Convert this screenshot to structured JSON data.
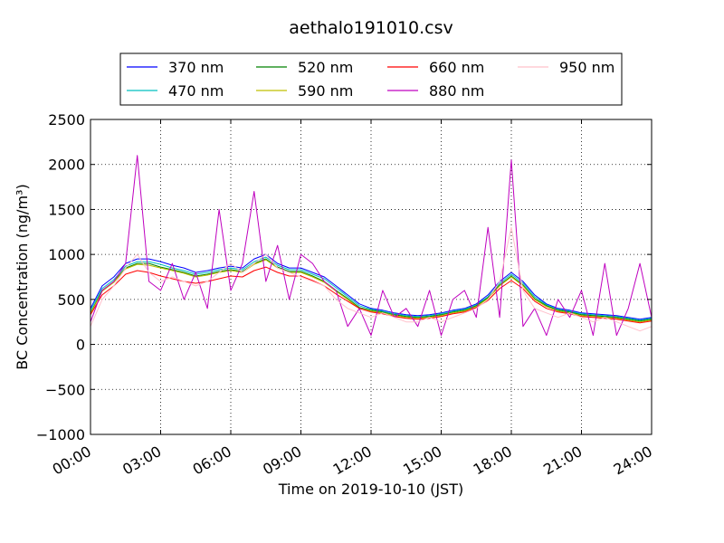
{
  "chart_data": {
    "type": "line",
    "title": "aethalo191010.csv",
    "xlabel": "Time on 2019-10-10 (JST)",
    "ylabel": "BC Concentration (ng/m³)",
    "xlim": [
      "00:00",
      "24:00"
    ],
    "ylim": [
      -1000,
      2500
    ],
    "grid": true,
    "legend_position": "top",
    "x_ticks": [
      "00:00",
      "03:00",
      "06:00",
      "09:00",
      "12:00",
      "15:00",
      "18:00",
      "21:00",
      "24:00"
    ],
    "y_ticks": [
      -1000,
      -500,
      0,
      500,
      1000,
      1500,
      2000,
      2500
    ],
    "y_tick_labels": [
      "−1000",
      "−500",
      "0",
      "500",
      "1000",
      "1500",
      "2000",
      "2500"
    ],
    "x_hours": [
      0,
      0.5,
      1,
      1.5,
      2,
      2.5,
      3,
      3.5,
      4,
      4.5,
      5,
      5.5,
      6,
      6.5,
      7,
      7.5,
      8,
      8.5,
      9,
      9.5,
      10,
      10.5,
      11,
      11.5,
      12,
      12.5,
      13,
      13.5,
      14,
      14.5,
      15,
      15.5,
      16,
      16.5,
      17,
      17.5,
      18,
      18.5,
      19,
      19.5,
      20,
      20.5,
      21,
      21.5,
      22,
      22.5,
      23,
      23.5,
      24
    ],
    "series": [
      {
        "name": "370 nm",
        "color": "#0000ff",
        "values": [
          400,
          650,
          750,
          900,
          950,
          950,
          920,
          880,
          850,
          800,
          820,
          850,
          870,
          850,
          950,
          1000,
          900,
          850,
          850,
          800,
          750,
          650,
          550,
          450,
          400,
          380,
          350,
          330,
          320,
          330,
          350,
          380,
          400,
          450,
          550,
          700,
          800,
          700,
          550,
          450,
          400,
          380,
          350,
          340,
          330,
          320,
          300,
          280,
          300
        ]
      },
      {
        "name": "470 nm",
        "color": "#00bfbf",
        "values": [
          380,
          620,
          720,
          870,
          920,
          920,
          890,
          850,
          820,
          780,
          800,
          830,
          850,
          830,
          920,
          970,
          880,
          830,
          830,
          780,
          730,
          630,
          530,
          430,
          390,
          370,
          340,
          320,
          310,
          320,
          340,
          370,
          390,
          440,
          530,
          680,
          780,
          680,
          530,
          440,
          390,
          370,
          340,
          330,
          320,
          310,
          290,
          270,
          290
        ]
      },
      {
        "name": "520 nm",
        "color": "#008000",
        "values": [
          350,
          600,
          700,
          850,
          900,
          900,
          860,
          830,
          800,
          760,
          780,
          810,
          830,
          810,
          900,
          950,
          860,
          810,
          810,
          760,
          700,
          600,
          510,
          410,
          380,
          360,
          330,
          310,
          300,
          310,
          330,
          360,
          380,
          430,
          520,
          660,
          760,
          660,
          510,
          430,
          380,
          360,
          330,
          320,
          310,
          300,
          280,
          260,
          280
        ]
      },
      {
        "name": "590 nm",
        "color": "#bfbf00",
        "values": [
          340,
          590,
          690,
          840,
          890,
          880,
          850,
          820,
          790,
          750,
          770,
          800,
          820,
          800,
          890,
          940,
          850,
          800,
          800,
          750,
          690,
          590,
          500,
          400,
          370,
          350,
          320,
          300,
          290,
          300,
          320,
          350,
          370,
          420,
          510,
          650,
          750,
          650,
          500,
          420,
          370,
          350,
          320,
          310,
          300,
          290,
          270,
          250,
          270
        ]
      },
      {
        "name": "660 nm",
        "color": "#ff0000",
        "values": [
          330,
          550,
          650,
          780,
          820,
          800,
          760,
          730,
          700,
          680,
          700,
          730,
          760,
          750,
          820,
          860,
          800,
          760,
          760,
          710,
          650,
          560,
          480,
          400,
          360,
          340,
          310,
          290,
          280,
          290,
          310,
          340,
          360,
          410,
          490,
          620,
          710,
          620,
          480,
          400,
          360,
          340,
          310,
          300,
          290,
          280,
          260,
          240,
          260
        ]
      },
      {
        "name": "880 nm",
        "color": "#bf00bf",
        "values": [
          250,
          600,
          700,
          900,
          2100,
          700,
          600,
          900,
          500,
          800,
          400,
          1500,
          600,
          900,
          1700,
          700,
          1100,
          500,
          1000,
          900,
          700,
          600,
          200,
          400,
          100,
          600,
          300,
          400,
          200,
          600,
          100,
          500,
          600,
          300,
          1300,
          300,
          2050,
          200,
          400,
          100,
          500,
          300,
          600,
          100,
          900,
          100,
          400,
          900,
          300
        ]
      },
      {
        "name": "950 nm",
        "color": "#ffc0cb",
        "values": [
          200,
          500,
          650,
          850,
          1000,
          800,
          700,
          750,
          700,
          650,
          700,
          800,
          900,
          800,
          900,
          1000,
          850,
          800,
          750,
          700,
          650,
          500,
          400,
          350,
          300,
          350,
          300,
          250,
          250,
          300,
          250,
          300,
          350,
          400,
          500,
          700,
          1300,
          600,
          400,
          350,
          300,
          350,
          300,
          250,
          300,
          250,
          200,
          150,
          200
        ]
      }
    ]
  }
}
